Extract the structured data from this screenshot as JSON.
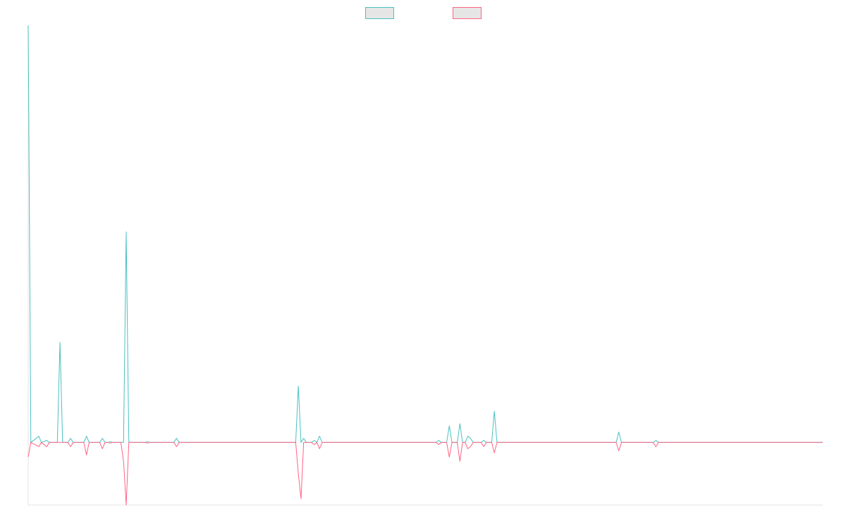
{
  "chart_data": {
    "type": "line",
    "title": "",
    "xlabel": "",
    "ylabel": "",
    "ylim": [
      -30,
      200
    ],
    "x_count": 301,
    "legend": {
      "placement": "top-center",
      "entries": [
        {
          "name": "",
          "border_color": "#4bc0c0",
          "fill_color": "#e6e6e6"
        },
        {
          "name": "",
          "border_color": "#ff6384",
          "fill_color": "#e6e6e6"
        }
      ]
    },
    "series": [
      {
        "name": "",
        "color": "#4bc0c0",
        "points": [
          [
            0,
            200
          ],
          [
            1,
            0
          ],
          [
            4,
            3
          ],
          [
            5,
            0
          ],
          [
            7,
            1
          ],
          [
            8,
            0
          ],
          [
            11,
            0
          ],
          [
            12,
            48
          ],
          [
            13,
            0
          ],
          [
            15,
            0
          ],
          [
            16,
            2
          ],
          [
            17,
            0
          ],
          [
            21,
            0
          ],
          [
            22,
            3
          ],
          [
            23,
            0
          ],
          [
            27,
            0
          ],
          [
            28,
            2
          ],
          [
            29,
            0
          ],
          [
            30,
            0
          ],
          [
            31,
            0.3
          ],
          [
            32,
            0
          ],
          [
            36,
            0
          ],
          [
            37,
            101
          ],
          [
            38,
            0
          ],
          [
            44,
            0
          ],
          [
            45,
            0.3
          ],
          [
            46,
            0
          ],
          [
            55,
            0
          ],
          [
            56,
            2
          ],
          [
            57,
            0
          ],
          [
            101,
            0
          ],
          [
            102,
            27
          ],
          [
            103,
            0
          ],
          [
            104,
            2
          ],
          [
            105,
            0
          ],
          [
            107,
            0
          ],
          [
            108,
            1
          ],
          [
            109,
            0
          ],
          [
            110,
            3
          ],
          [
            111,
            0
          ],
          [
            154,
            0
          ],
          [
            155,
            1
          ],
          [
            156,
            0
          ],
          [
            158,
            0
          ],
          [
            159,
            8
          ],
          [
            160,
            0
          ],
          [
            162,
            0
          ],
          [
            163,
            9
          ],
          [
            164,
            0
          ],
          [
            165,
            0
          ],
          [
            166,
            3
          ],
          [
            167,
            2
          ],
          [
            168,
            0
          ],
          [
            171,
            0
          ],
          [
            172,
            1
          ],
          [
            173,
            0
          ],
          [
            175,
            0
          ],
          [
            176,
            15
          ],
          [
            177,
            0
          ],
          [
            222,
            0
          ],
          [
            223,
            5
          ],
          [
            224,
            0
          ],
          [
            236,
            0
          ],
          [
            237,
            1
          ],
          [
            238,
            0
          ],
          [
            300,
            0
          ]
        ]
      },
      {
        "name": "",
        "color": "#ff6384",
        "points": [
          [
            0,
            -7
          ],
          [
            1,
            0
          ],
          [
            4,
            -2
          ],
          [
            5,
            0
          ],
          [
            7,
            -2
          ],
          [
            8,
            0
          ],
          [
            11,
            0
          ],
          [
            12,
            0
          ],
          [
            13,
            0
          ],
          [
            15,
            0
          ],
          [
            16,
            -2
          ],
          [
            17,
            0
          ],
          [
            21,
            0
          ],
          [
            22,
            -6
          ],
          [
            23,
            0
          ],
          [
            27,
            0
          ],
          [
            28,
            -3
          ],
          [
            29,
            0
          ],
          [
            30,
            0
          ],
          [
            31,
            -0.3
          ],
          [
            32,
            0
          ],
          [
            35,
            0
          ],
          [
            36,
            -9
          ],
          [
            37,
            -30
          ],
          [
            38,
            0
          ],
          [
            44,
            0
          ],
          [
            45,
            -0.3
          ],
          [
            46,
            0
          ],
          [
            55,
            0
          ],
          [
            56,
            -2
          ],
          [
            57,
            0
          ],
          [
            101,
            0
          ],
          [
            102,
            -15
          ],
          [
            103,
            -27
          ],
          [
            104,
            0
          ],
          [
            107,
            0
          ],
          [
            108,
            -1
          ],
          [
            109,
            0
          ],
          [
            110,
            -3
          ],
          [
            111,
            0
          ],
          [
            154,
            0
          ],
          [
            155,
            -1
          ],
          [
            156,
            0
          ],
          [
            158,
            0
          ],
          [
            159,
            -7
          ],
          [
            160,
            0
          ],
          [
            162,
            0
          ],
          [
            163,
            -9
          ],
          [
            164,
            0
          ],
          [
            165,
            0
          ],
          [
            166,
            -3
          ],
          [
            167,
            -2
          ],
          [
            168,
            0
          ],
          [
            171,
            0
          ],
          [
            172,
            -2
          ],
          [
            173,
            0
          ],
          [
            175,
            0
          ],
          [
            176,
            -5
          ],
          [
            177,
            0
          ],
          [
            222,
            0
          ],
          [
            223,
            -4
          ],
          [
            224,
            0
          ],
          [
            236,
            0
          ],
          [
            237,
            -2
          ],
          [
            238,
            0
          ],
          [
            300,
            0
          ]
        ]
      }
    ]
  }
}
